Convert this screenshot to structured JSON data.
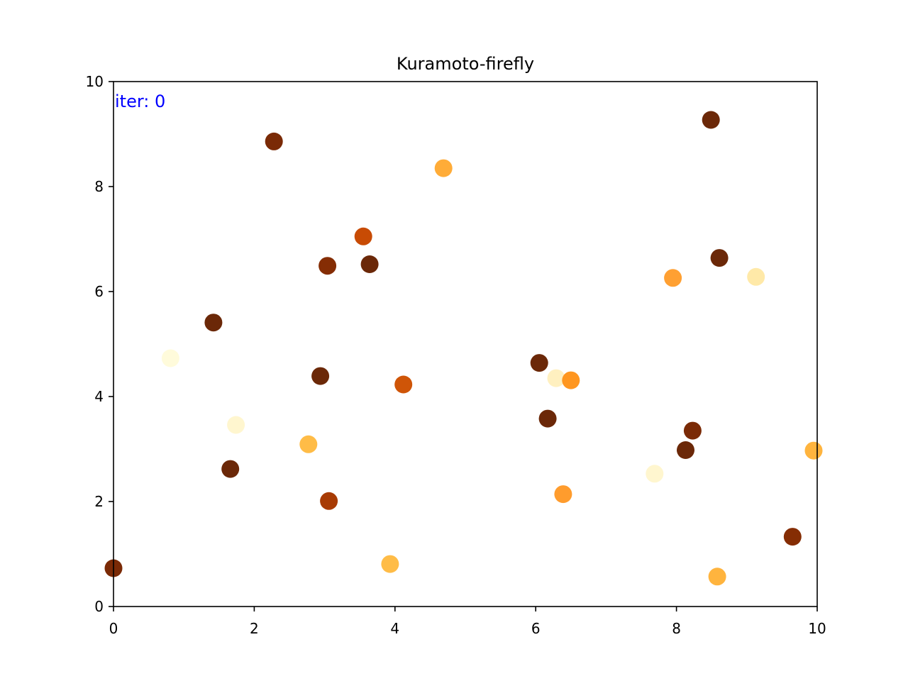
{
  "chart_data": {
    "type": "scatter",
    "title": "Kuramoto-firefly",
    "xlabel": "",
    "ylabel": "",
    "xlim": [
      0,
      10
    ],
    "ylim": [
      0,
      10
    ],
    "xticks": [
      "0",
      "2",
      "4",
      "6",
      "8",
      "10"
    ],
    "yticks": [
      "0",
      "2",
      "4",
      "6",
      "8",
      "10"
    ],
    "grid": false,
    "annotation": {
      "text": "iter: 0",
      "color": "#0000ff"
    },
    "points": [
      {
        "x": 0.0,
        "y": 0.73,
        "color": "#7a2a06"
      },
      {
        "x": 0.81,
        "y": 4.73,
        "color": "#fffbdb"
      },
      {
        "x": 1.42,
        "y": 5.41,
        "color": "#6b2808"
      },
      {
        "x": 1.66,
        "y": 2.62,
        "color": "#6b2808"
      },
      {
        "x": 1.74,
        "y": 3.46,
        "color": "#fff6cf"
      },
      {
        "x": 2.28,
        "y": 8.86,
        "color": "#7a2a06"
      },
      {
        "x": 2.77,
        "y": 3.09,
        "color": "#ffbc47"
      },
      {
        "x": 2.94,
        "y": 4.39,
        "color": "#6b2808"
      },
      {
        "x": 3.04,
        "y": 6.49,
        "color": "#852d04"
      },
      {
        "x": 3.06,
        "y": 2.01,
        "color": "#a83b04"
      },
      {
        "x": 3.55,
        "y": 7.05,
        "color": "#c84b04"
      },
      {
        "x": 3.64,
        "y": 6.52,
        "color": "#6b2808"
      },
      {
        "x": 3.93,
        "y": 0.81,
        "color": "#ffbc47"
      },
      {
        "x": 4.12,
        "y": 4.23,
        "color": "#cf5507"
      },
      {
        "x": 4.69,
        "y": 8.35,
        "color": "#ffac38"
      },
      {
        "x": 6.05,
        "y": 4.64,
        "color": "#6b2808"
      },
      {
        "x": 6.17,
        "y": 3.58,
        "color": "#6b2808"
      },
      {
        "x": 6.29,
        "y": 4.35,
        "color": "#fff0c0"
      },
      {
        "x": 6.39,
        "y": 2.14,
        "color": "#ff9c2d"
      },
      {
        "x": 6.5,
        "y": 4.31,
        "color": "#ff961f"
      },
      {
        "x": 7.69,
        "y": 2.53,
        "color": "#fff6cf"
      },
      {
        "x": 7.95,
        "y": 6.26,
        "color": "#ffa032"
      },
      {
        "x": 8.13,
        "y": 2.98,
        "color": "#6b2808"
      },
      {
        "x": 8.23,
        "y": 3.35,
        "color": "#7a2a06"
      },
      {
        "x": 8.49,
        "y": 9.27,
        "color": "#6b2808"
      },
      {
        "x": 8.58,
        "y": 0.57,
        "color": "#ffb43e"
      },
      {
        "x": 8.61,
        "y": 6.64,
        "color": "#6b2808"
      },
      {
        "x": 9.13,
        "y": 6.28,
        "color": "#ffe9a8"
      },
      {
        "x": 9.65,
        "y": 1.33,
        "color": "#852d04"
      },
      {
        "x": 9.95,
        "y": 2.97,
        "color": "#ffb43e"
      }
    ]
  }
}
